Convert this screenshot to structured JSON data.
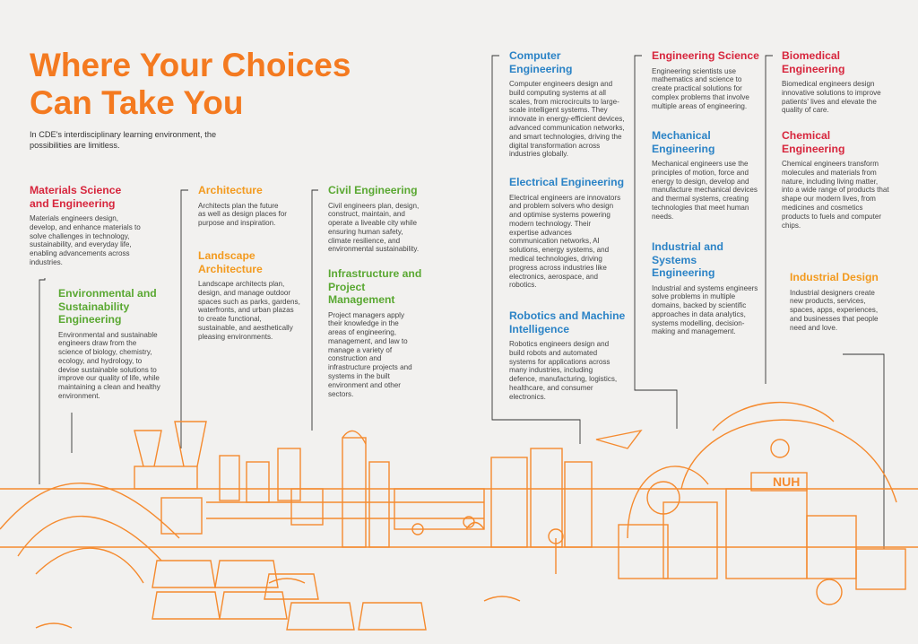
{
  "header": {
    "title": "Where Your Choices Can Take You",
    "subtitle": "In CDE's interdisciplinary learning environment, the possibilities are limitless."
  },
  "fields": [
    {
      "name": "Materials Science and Engineering",
      "description": "Materials engineers design, develop, and enhance materials to solve challenges in technology, sustainability, and everyday life, enabling advancements across industries."
    },
    {
      "name": "Environmental and Sustainability Engineering",
      "description": "Environmental and sustainable engineers draw from the science of biology, chemistry, ecology, and hydrology, to devise sustainable solutions to improve our quality of life, while maintaining a clean and healthy environment."
    },
    {
      "name": "Architecture",
      "description": "Architects plan the future as well as design places for purpose and inspiration."
    },
    {
      "name": "Landscape Architecture",
      "description": "Landscape architects plan, design, and manage outdoor spaces such as parks, gardens, waterfronts, and urban plazas to create functional, sustainable, and aesthetically pleasing environments."
    },
    {
      "name": "Civil Engineering",
      "description": "Civil engineers plan, design, construct, maintain, and operate a liveable city while ensuring human safety, climate resilience, and environmental sustainability."
    },
    {
      "name": "Infrastructure and Project Management",
      "description": "Project managers apply their knowledge in the areas of engineering, management, and law to manage a variety of construction and infrastructure projects and systems in the built environment and other sectors."
    },
    {
      "name": "Computer Engineering",
      "description": "Computer engineers design and build computing systems at all scales, from microcircuits to large-scale intelligent systems. They innovate in energy-efficient devices, advanced communication networks, and smart technologies, driving the digital transformation across industries globally."
    },
    {
      "name": "Electrical Engineering",
      "description": "Electrical engineers are innovators and problem solvers who design and optimise systems powering modern technology. Their expertise advances communication networks, AI solutions, energy systems, and medical technologies, driving progress across industries like electronics, aerospace, and robotics."
    },
    {
      "name": "Robotics and Machine Intelligence",
      "description": "Robotics engineers design and build robots and automated systems for applications across many industries, including defence, manufacturing, logistics, healthcare, and consumer electronics."
    },
    {
      "name": "Engineering Science",
      "description": "Engineering scientists use mathematics and science to create practical solutions for complex problems that involve multiple areas of engineering."
    },
    {
      "name": "Mechanical Engineering",
      "description": "Mechanical engineers use the principles of motion, force and energy to design, develop and manufacture mechanical devices and thermal systems, creating technologies that meet human needs."
    },
    {
      "name": "Industrial and Systems Engineering",
      "description": "Industrial and systems engineers solve problems in multiple domains, backed by scientific approaches in data analytics, systems modelling, decision-making and management."
    },
    {
      "name": "Biomedical Engineering",
      "description": "Biomedical engineers design innovative solutions to improve patients' lives and elevate the quality of care."
    },
    {
      "name": "Chemical Engineering",
      "description": "Chemical engineers transform molecules and materials from nature, including living matter, into a wide range of products that shape our modern lives, from medicines and cosmetics products to fuels and computer chips."
    },
    {
      "name": "Industrial Design",
      "description": "Industrial designers create new products, services, spaces, apps, experiences, and businesses that people need and love."
    }
  ],
  "illustration": {
    "sign": "NUH"
  }
}
